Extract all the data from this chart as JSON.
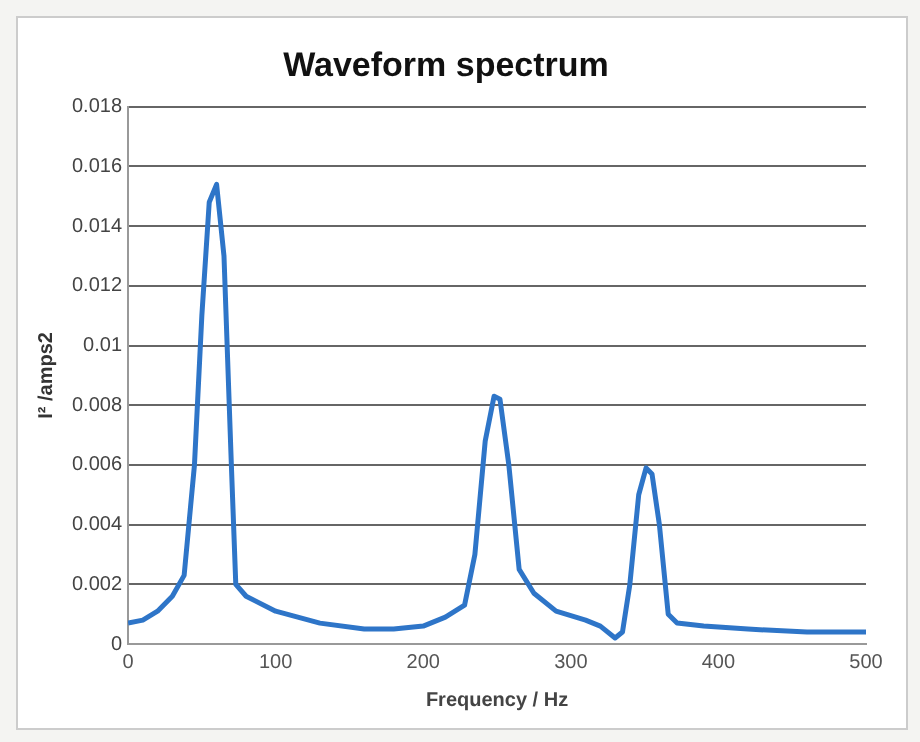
{
  "chart_data": {
    "type": "line",
    "title": "Waveform spectrum",
    "xlabel": "Frequency / Hz",
    "ylabel": "I² /amps2",
    "x": [
      0,
      10,
      20,
      30,
      38,
      45,
      50,
      55,
      60,
      65,
      70,
      73,
      80,
      100,
      130,
      160,
      180,
      200,
      215,
      228,
      235,
      242,
      248,
      252,
      258,
      265,
      275,
      290,
      310,
      320,
      330,
      335,
      340,
      346,
      351,
      355,
      360,
      366,
      372,
      390,
      420,
      460,
      500
    ],
    "series": [
      {
        "color": "#2e75c8",
        "values": [
          0.0007,
          0.0008,
          0.0011,
          0.0016,
          0.0023,
          0.006,
          0.011,
          0.0148,
          0.0154,
          0.013,
          0.006,
          0.002,
          0.0016,
          0.0011,
          0.0007,
          0.0005,
          0.0005,
          0.0006,
          0.0009,
          0.0013,
          0.003,
          0.0068,
          0.0083,
          0.0082,
          0.006,
          0.0025,
          0.0017,
          0.0011,
          0.0008,
          0.0006,
          0.0002,
          0.0004,
          0.002,
          0.005,
          0.0059,
          0.0057,
          0.004,
          0.001,
          0.0007,
          0.0006,
          0.0005,
          0.0004,
          0.0004
        ]
      }
    ],
    "xlim": [
      0,
      500
    ],
    "xticks": [
      0,
      100,
      200,
      300,
      400,
      500
    ],
    "ylim": [
      0,
      0.018
    ],
    "yticks": [
      0,
      0.002,
      0.004,
      0.006,
      0.008,
      0.01,
      0.012,
      0.014,
      0.016,
      0.018
    ],
    "grid": "y",
    "legend": false,
    "marker": "none",
    "line_style": "solid"
  }
}
